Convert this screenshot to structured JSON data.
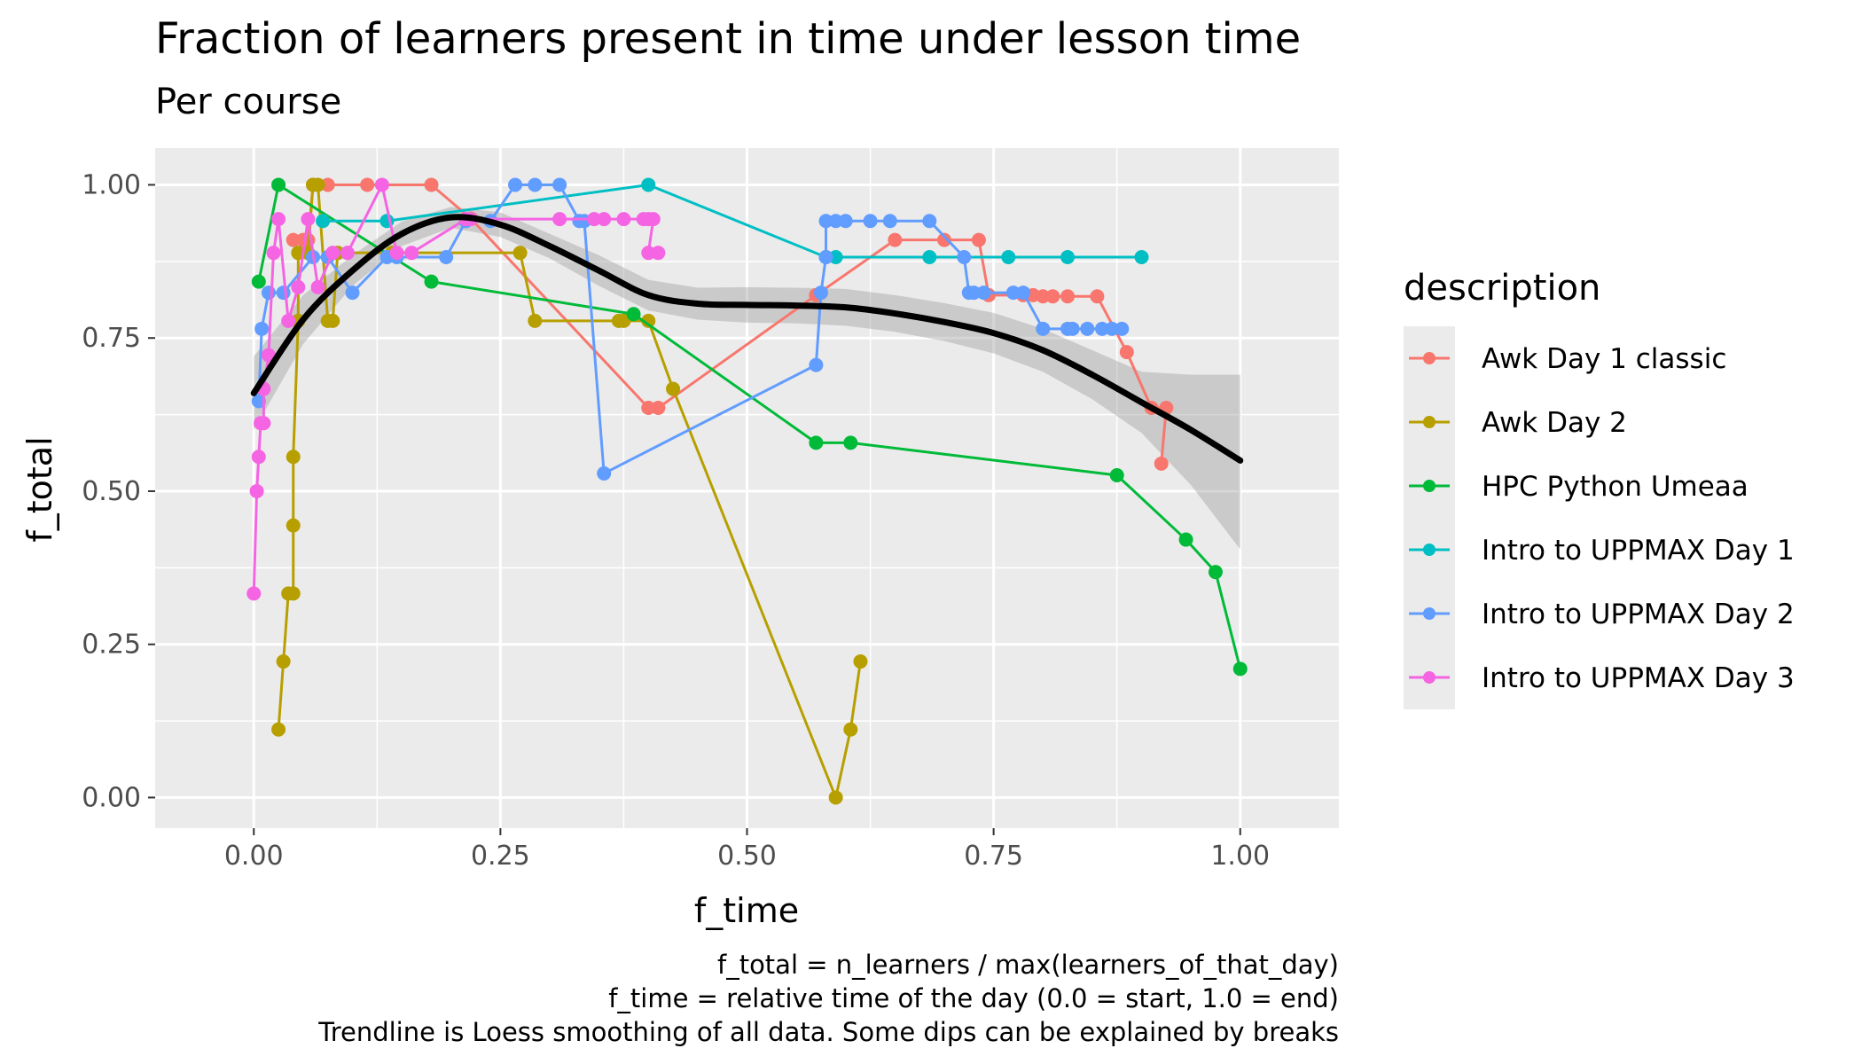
{
  "chart_data": {
    "type": "line",
    "title": "Fraction of learners present in time under lesson time",
    "subtitle": "Per course",
    "xlabel": "f_time",
    "ylabel": "f_total",
    "xlim": [
      -0.1,
      1.1
    ],
    "ylim": [
      -0.05,
      1.06
    ],
    "x_ticks": [
      "0.00",
      "0.25",
      "0.50",
      "0.75",
      "1.00"
    ],
    "y_ticks": [
      "0.00",
      "0.25",
      "0.50",
      "0.75",
      "1.00"
    ],
    "x_tick_values": [
      0,
      0.25,
      0.5,
      0.75,
      1.0
    ],
    "y_tick_values": [
      0,
      0.25,
      0.5,
      0.75,
      1.0
    ],
    "legend_title": "description",
    "legend_position": "right",
    "caption": [
      "f_total = n_learners / max(learners_of_that_day)",
      "f_time = relative time of the day (0.0 = start, 1.0 = end)",
      "Trendline is Loess smoothing of all data. Some dips can be explained by breaks"
    ],
    "series": [
      {
        "name": "Awk Day 1 classic",
        "color": "#F8766D",
        "points": [
          [
            0.04,
            0.91
          ],
          [
            0.05,
            0.91
          ],
          [
            0.055,
            0.91
          ],
          [
            0.06,
            1.0
          ],
          [
            0.075,
            1.0
          ],
          [
            0.115,
            1.0
          ],
          [
            0.18,
            1.0
          ],
          [
            0.22,
            0.945
          ],
          [
            0.4,
            0.636
          ],
          [
            0.41,
            0.636
          ],
          [
            0.57,
            0.82
          ],
          [
            0.65,
            0.91
          ],
          [
            0.7,
            0.91
          ],
          [
            0.735,
            0.91
          ],
          [
            0.745,
            0.82
          ],
          [
            0.78,
            0.82
          ],
          [
            0.79,
            0.82
          ],
          [
            0.8,
            0.818
          ],
          [
            0.81,
            0.818
          ],
          [
            0.825,
            0.818
          ],
          [
            0.855,
            0.818
          ],
          [
            0.885,
            0.727
          ],
          [
            0.91,
            0.636
          ],
          [
            0.925,
            0.636
          ],
          [
            0.92,
            0.545
          ]
        ]
      },
      {
        "name": "Awk Day 2",
        "color": "#B79F00",
        "points": [
          [
            0.025,
            0.111
          ],
          [
            0.03,
            0.222
          ],
          [
            0.035,
            0.333
          ],
          [
            0.04,
            0.333
          ],
          [
            0.04,
            0.444
          ],
          [
            0.04,
            0.556
          ],
          [
            0.045,
            0.778
          ],
          [
            0.045,
            0.889
          ],
          [
            0.055,
            0.889
          ],
          [
            0.06,
            1.0
          ],
          [
            0.065,
            1.0
          ],
          [
            0.075,
            0.778
          ],
          [
            0.08,
            0.778
          ],
          [
            0.085,
            0.889
          ],
          [
            0.14,
            0.889
          ],
          [
            0.27,
            0.889
          ],
          [
            0.285,
            0.778
          ],
          [
            0.37,
            0.778
          ],
          [
            0.375,
            0.778
          ],
          [
            0.4,
            0.778
          ],
          [
            0.425,
            0.667
          ],
          [
            0.59,
            0.0
          ],
          [
            0.605,
            0.111
          ],
          [
            0.615,
            0.222
          ]
        ]
      },
      {
        "name": "HPC Python Umeaa",
        "color": "#00BA38",
        "points": [
          [
            0.005,
            0.842
          ],
          [
            0.025,
            1.0
          ],
          [
            0.18,
            0.842
          ],
          [
            0.385,
            0.789
          ],
          [
            0.57,
            0.579
          ],
          [
            0.605,
            0.579
          ],
          [
            0.875,
            0.526
          ],
          [
            0.945,
            0.421
          ],
          [
            0.975,
            0.368
          ],
          [
            1.0,
            0.21
          ]
        ]
      },
      {
        "name": "Intro to UPPMAX Day 1",
        "color": "#00BFC4",
        "points": [
          [
            0.07,
            0.941
          ],
          [
            0.135,
            0.941
          ],
          [
            0.4,
            1.0
          ],
          [
            0.58,
            0.882
          ],
          [
            0.59,
            0.882
          ],
          [
            0.685,
            0.882
          ],
          [
            0.765,
            0.882
          ],
          [
            0.825,
            0.882
          ],
          [
            0.9,
            0.882
          ]
        ]
      },
      {
        "name": "Intro to UPPMAX Day 2",
        "color": "#619CFF",
        "points": [
          [
            0.005,
            0.647
          ],
          [
            0.008,
            0.765
          ],
          [
            0.015,
            0.824
          ],
          [
            0.03,
            0.824
          ],
          [
            0.06,
            0.882
          ],
          [
            0.075,
            0.882
          ],
          [
            0.1,
            0.824
          ],
          [
            0.135,
            0.882
          ],
          [
            0.145,
            0.882
          ],
          [
            0.195,
            0.882
          ],
          [
            0.215,
            0.941
          ],
          [
            0.24,
            0.941
          ],
          [
            0.265,
            1.0
          ],
          [
            0.285,
            1.0
          ],
          [
            0.31,
            1.0
          ],
          [
            0.33,
            0.941
          ],
          [
            0.335,
            0.941
          ],
          [
            0.355,
            0.529
          ],
          [
            0.57,
            0.706
          ],
          [
            0.575,
            0.824
          ],
          [
            0.58,
            0.882
          ],
          [
            0.58,
            0.941
          ],
          [
            0.59,
            0.941
          ],
          [
            0.6,
            0.941
          ],
          [
            0.625,
            0.941
          ],
          [
            0.645,
            0.941
          ],
          [
            0.685,
            0.941
          ],
          [
            0.72,
            0.882
          ],
          [
            0.725,
            0.824
          ],
          [
            0.73,
            0.824
          ],
          [
            0.74,
            0.824
          ],
          [
            0.77,
            0.824
          ],
          [
            0.78,
            0.824
          ],
          [
            0.8,
            0.765
          ],
          [
            0.825,
            0.765
          ],
          [
            0.83,
            0.765
          ],
          [
            0.845,
            0.765
          ],
          [
            0.86,
            0.765
          ],
          [
            0.87,
            0.765
          ],
          [
            0.88,
            0.765
          ]
        ]
      },
      {
        "name": "Intro to UPPMAX Day 3",
        "color": "#F564E3",
        "points": [
          [
            0.0,
            0.333
          ],
          [
            0.003,
            0.5
          ],
          [
            0.005,
            0.556
          ],
          [
            0.007,
            0.611
          ],
          [
            0.01,
            0.611
          ],
          [
            0.01,
            0.667
          ],
          [
            0.015,
            0.722
          ],
          [
            0.02,
            0.889
          ],
          [
            0.025,
            0.944
          ],
          [
            0.035,
            0.778
          ],
          [
            0.045,
            0.833
          ],
          [
            0.055,
            0.944
          ],
          [
            0.065,
            0.833
          ],
          [
            0.08,
            0.889
          ],
          [
            0.095,
            0.889
          ],
          [
            0.13,
            1.0
          ],
          [
            0.145,
            0.889
          ],
          [
            0.16,
            0.889
          ],
          [
            0.215,
            0.944
          ],
          [
            0.22,
            0.944
          ],
          [
            0.31,
            0.944
          ],
          [
            0.345,
            0.944
          ],
          [
            0.355,
            0.944
          ],
          [
            0.375,
            0.944
          ],
          [
            0.395,
            0.944
          ],
          [
            0.4,
            0.944
          ],
          [
            0.405,
            0.944
          ],
          [
            0.4,
            0.889
          ],
          [
            0.41,
            0.889
          ]
        ]
      }
    ],
    "trend": {
      "name": "Loess trendline",
      "color": "#000000",
      "points": [
        [
          0.0,
          0.66
        ],
        [
          0.05,
          0.78
        ],
        [
          0.1,
          0.86
        ],
        [
          0.15,
          0.92
        ],
        [
          0.2,
          0.947
        ],
        [
          0.25,
          0.935
        ],
        [
          0.3,
          0.9
        ],
        [
          0.35,
          0.86
        ],
        [
          0.4,
          0.82
        ],
        [
          0.45,
          0.806
        ],
        [
          0.5,
          0.804
        ],
        [
          0.55,
          0.803
        ],
        [
          0.6,
          0.8
        ],
        [
          0.65,
          0.79
        ],
        [
          0.7,
          0.776
        ],
        [
          0.75,
          0.758
        ],
        [
          0.8,
          0.73
        ],
        [
          0.85,
          0.69
        ],
        [
          0.9,
          0.645
        ],
        [
          0.95,
          0.6
        ],
        [
          1.0,
          0.55
        ]
      ],
      "ci_lower": [
        [
          0.0,
          0.6
        ],
        [
          0.05,
          0.74
        ],
        [
          0.1,
          0.835
        ],
        [
          0.15,
          0.9
        ],
        [
          0.2,
          0.93
        ],
        [
          0.25,
          0.915
        ],
        [
          0.3,
          0.88
        ],
        [
          0.35,
          0.835
        ],
        [
          0.4,
          0.795
        ],
        [
          0.45,
          0.78
        ],
        [
          0.5,
          0.775
        ],
        [
          0.55,
          0.774
        ],
        [
          0.6,
          0.77
        ],
        [
          0.65,
          0.76
        ],
        [
          0.7,
          0.745
        ],
        [
          0.75,
          0.725
        ],
        [
          0.8,
          0.695
        ],
        [
          0.85,
          0.65
        ],
        [
          0.9,
          0.595
        ],
        [
          0.95,
          0.51
        ],
        [
          1.0,
          0.405
        ]
      ],
      "ci_upper": [
        [
          0.0,
          0.72
        ],
        [
          0.05,
          0.82
        ],
        [
          0.1,
          0.885
        ],
        [
          0.15,
          0.94
        ],
        [
          0.2,
          0.964
        ],
        [
          0.25,
          0.955
        ],
        [
          0.3,
          0.92
        ],
        [
          0.35,
          0.885
        ],
        [
          0.4,
          0.845
        ],
        [
          0.45,
          0.832
        ],
        [
          0.5,
          0.833
        ],
        [
          0.55,
          0.832
        ],
        [
          0.6,
          0.83
        ],
        [
          0.65,
          0.82
        ],
        [
          0.7,
          0.807
        ],
        [
          0.75,
          0.791
        ],
        [
          0.8,
          0.765
        ],
        [
          0.85,
          0.73
        ],
        [
          0.9,
          0.695
        ],
        [
          0.95,
          0.69
        ],
        [
          1.0,
          0.69
        ]
      ]
    }
  }
}
